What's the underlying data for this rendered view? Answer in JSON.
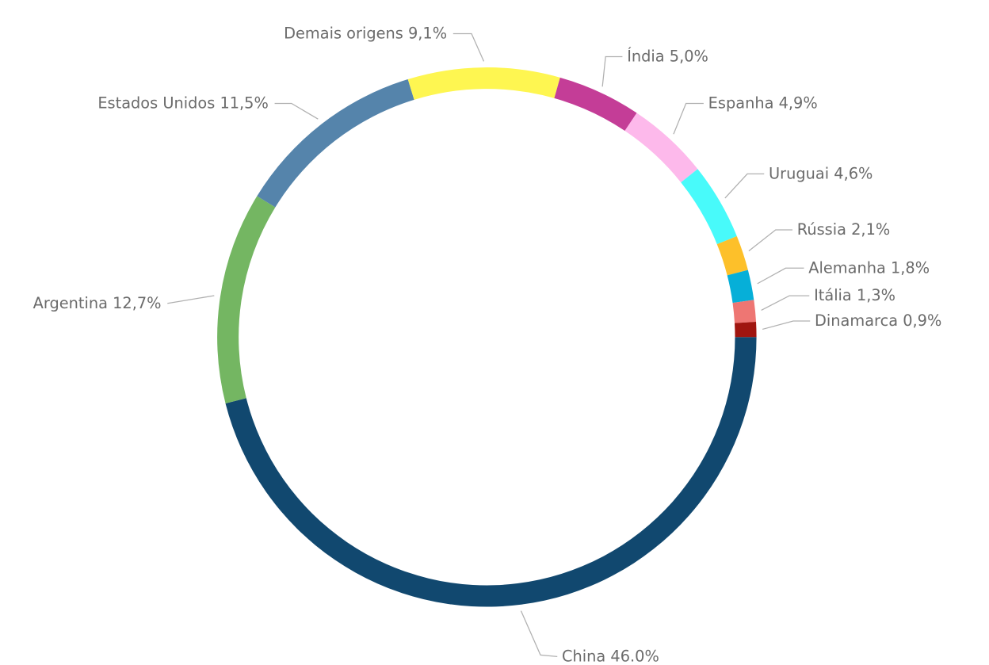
{
  "chart_data": {
    "type": "donut",
    "categories": [
      "China",
      "Argentina",
      "Estados Unidos",
      "Demais origens",
      "Índia",
      "Espanha",
      "Uruguai",
      "Rússia",
      "Alemanha",
      "Itália",
      "Dinamarca"
    ],
    "values": [
      46.0,
      12.7,
      11.5,
      9.1,
      5.0,
      4.9,
      4.6,
      2.1,
      1.8,
      1.3,
      0.9
    ],
    "value_labels": [
      "46.0%",
      "12,7%",
      "11,5%",
      "9,1%",
      "5,0%",
      "4,9%",
      "4,6%",
      "2,1%",
      "1,8%",
      "1,3%",
      "0,9%"
    ],
    "colors": [
      "#11486f",
      "#74b662",
      "#5584ab",
      "#fef651",
      "#c43d97",
      "#fdb9eb",
      "#48fafa",
      "#fdc02a",
      "#06afd8",
      "#ee7673",
      "#a0150f"
    ]
  }
}
